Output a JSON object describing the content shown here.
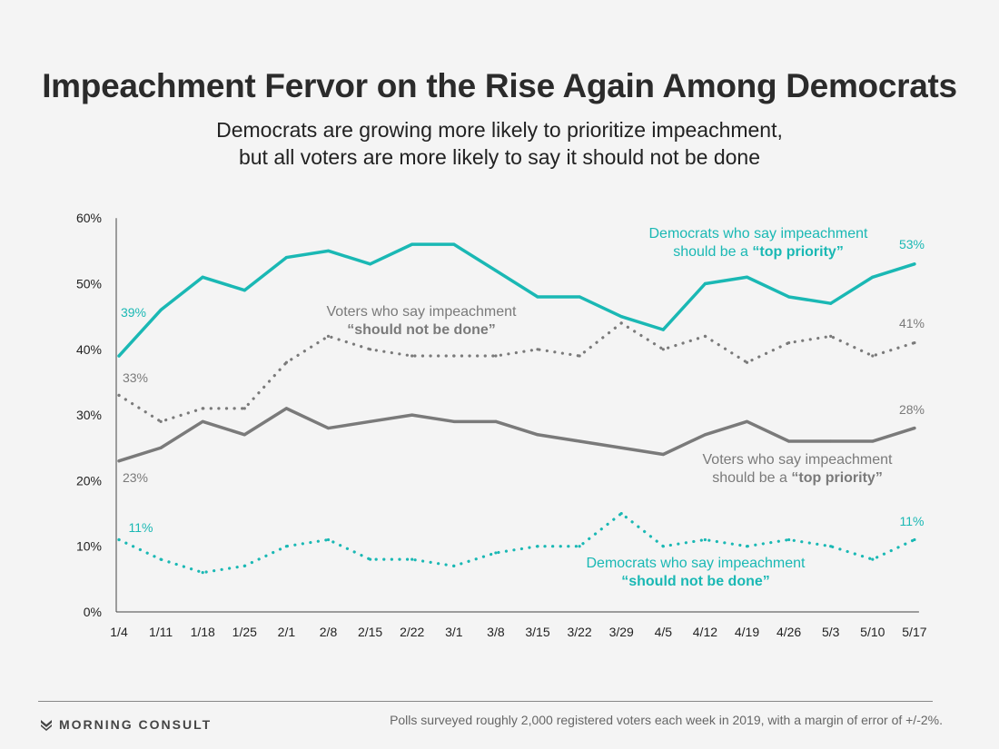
{
  "header": {
    "title": "Impeachment Fervor on the Rise Again Among Democrats",
    "subtitle_line_1": "Democrats are growing more likely to prioritize impeachment,",
    "subtitle_line_2": "but all voters are more likely to say it should not be done"
  },
  "chart_data": {
    "type": "line",
    "categories": [
      "1/4",
      "1/11",
      "1/18",
      "1/25",
      "2/1",
      "2/8",
      "2/15",
      "2/22",
      "3/1",
      "3/8",
      "3/15",
      "3/22",
      "3/29",
      "4/5",
      "4/12",
      "4/19",
      "4/26",
      "5/3",
      "5/10",
      "5/17"
    ],
    "ylim": [
      0,
      60
    ],
    "yticks": [
      "0%",
      "10%",
      "20%",
      "30%",
      "40%",
      "50%",
      "60%"
    ],
    "grid": false,
    "legend": "inline labels",
    "series": [
      {
        "key": "dem_top",
        "label_line_1": "Democrats who say impeachment",
        "label_line_2_plain": "should be a ",
        "label_line_2_bold": "“top priority”",
        "style": "solid",
        "color": "#1ab8b4",
        "start_label": "39%",
        "end_label": "53%",
        "values": [
          39,
          46,
          51,
          49,
          54,
          55,
          53,
          56,
          56,
          52,
          48,
          48,
          45,
          43,
          50,
          51,
          48,
          47,
          51,
          53
        ]
      },
      {
        "key": "all_not_done",
        "label_line_1": "Voters who say impeachment",
        "label_line_2_plain": "",
        "label_line_2_bold": "“should not be done”",
        "style": "dotted",
        "color": "#7a7a7a",
        "start_label": "33%",
        "end_label": "41%",
        "values": [
          33,
          29,
          31,
          31,
          38,
          42,
          40,
          39,
          39,
          39,
          40,
          39,
          44,
          40,
          42,
          38,
          41,
          42,
          39,
          41
        ]
      },
      {
        "key": "all_top",
        "label_line_1": "Voters who say impeachment",
        "label_line_2_plain": "should be a ",
        "label_line_2_bold": "“top priority”",
        "style": "solid",
        "color": "#7a7a7a",
        "start_label": "23%",
        "end_label": "28%",
        "values": [
          23,
          25,
          29,
          27,
          31,
          28,
          29,
          30,
          29,
          29,
          27,
          26,
          25,
          24,
          27,
          29,
          26,
          26,
          26,
          28
        ]
      },
      {
        "key": "dem_not_done",
        "label_line_1": "Democrats who say impeachment",
        "label_line_2_plain": "",
        "label_line_2_bold": "“should not be done”",
        "style": "dotted",
        "color": "#1ab8b4",
        "start_label": "11%",
        "end_label": "11%",
        "values": [
          11,
          8,
          6,
          7,
          10,
          11,
          8,
          8,
          7,
          9,
          10,
          10,
          15,
          10,
          11,
          10,
          11,
          10,
          8,
          11
        ]
      }
    ]
  },
  "footer": {
    "brand": "MORNING CONSULT",
    "footnote": "Polls surveyed roughly 2,000 registered voters each week in 2019, with a margin of error of +/-2%."
  }
}
